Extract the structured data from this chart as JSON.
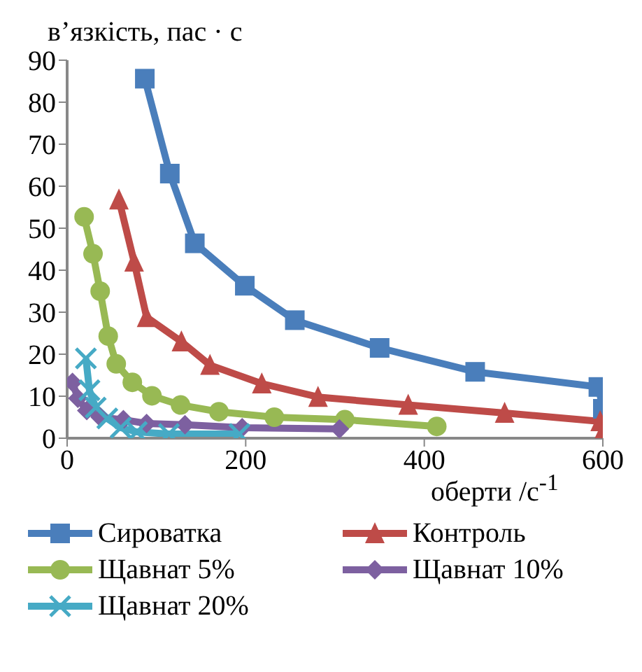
{
  "chart_data": {
    "type": "line",
    "ylabel": "в’язкість, пас · с",
    "xlabel": "оберти /с$^{-1}$",
    "xlim": [
      0,
      600
    ],
    "xticks": [
      0,
      200,
      400,
      600
    ],
    "ylim": [
      0,
      90
    ],
    "yticks": [
      0,
      10,
      20,
      30,
      40,
      50,
      60,
      70,
      80,
      90
    ],
    "legend": "bottom",
    "series": [
      {
        "name": "Сироватка",
        "color": "#4a7ebb",
        "marker": "square",
        "x": [
          87,
          115,
          143,
          199,
          255,
          350,
          457,
          595,
          600
        ],
        "values": [
          85.6,
          63,
          46.4,
          36.3,
          28.1,
          21.5,
          15.8,
          12.2,
          7
        ]
      },
      {
        "name": "Контроль",
        "color": "#be4b48",
        "marker": "triangle",
        "x": [
          58,
          75,
          89,
          128,
          160,
          218,
          281,
          382,
          490,
          597,
          600
        ],
        "values": [
          56.8,
          42,
          28.8,
          23,
          17.4,
          13,
          9.8,
          7.9,
          6,
          4,
          1.5
        ]
      },
      {
        "name": "Щавнат 5%",
        "color": "#98b954",
        "marker": "circle",
        "x": [
          19,
          29,
          37,
          46,
          55,
          73,
          95,
          127,
          170,
          232,
          311,
          414
        ],
        "values": [
          52.7,
          43.9,
          35,
          24.3,
          17.7,
          13.3,
          10.1,
          7.9,
          6.3,
          5,
          4.4,
          2.8
        ]
      },
      {
        "name": "Щавнат 10%",
        "color": "#7d60a0",
        "marker": "diamond",
        "x": [
          6,
          12,
          22,
          37,
          63,
          89,
          132,
          196,
          305
        ],
        "values": [
          13.3,
          9.5,
          6.6,
          5,
          4.4,
          3.5,
          3.2,
          2.5,
          2.2
        ]
      },
      {
        "name": "Щавнат 20%",
        "color": "#46aac5",
        "marker": "cross",
        "x": [
          21,
          25,
          32,
          45,
          60,
          78,
          114,
          193
        ],
        "values": [
          19,
          11.4,
          7.3,
          4.7,
          2.5,
          1.5,
          1,
          1
        ]
      }
    ]
  }
}
